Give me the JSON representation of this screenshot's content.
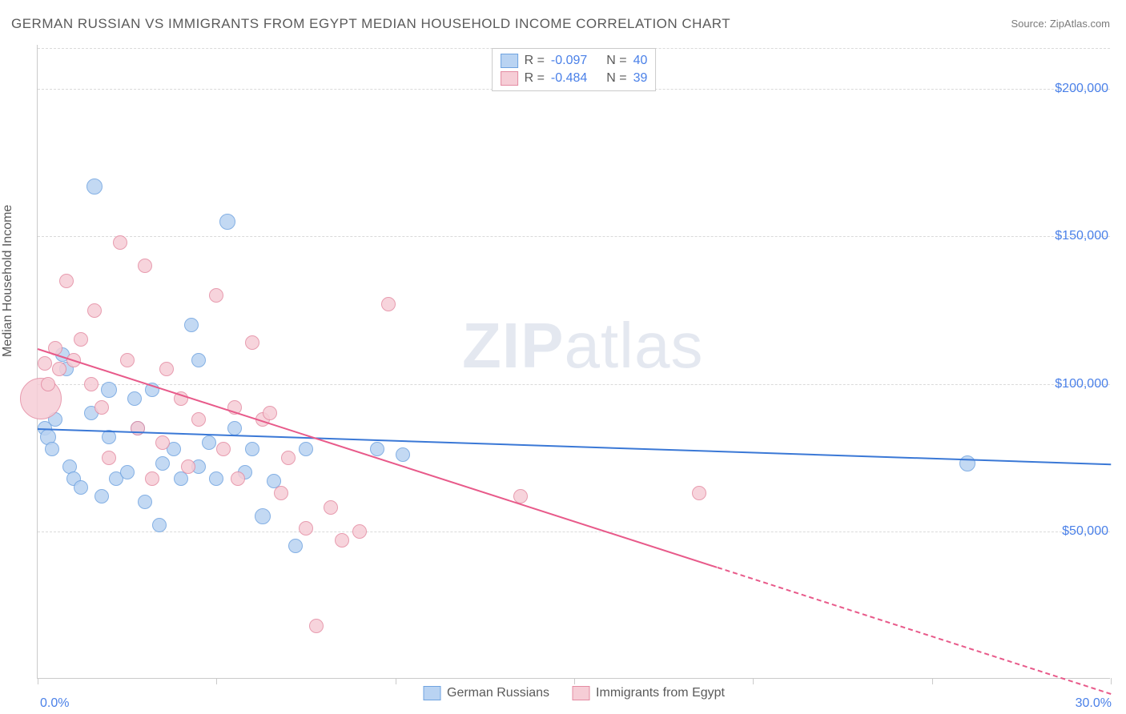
{
  "title": "GERMAN RUSSIAN VS IMMIGRANTS FROM EGYPT MEDIAN HOUSEHOLD INCOME CORRELATION CHART",
  "source": "Source: ZipAtlas.com",
  "ylabel": "Median Household Income",
  "watermark": "ZIPatlas",
  "chart": {
    "type": "scatter",
    "xlim": [
      0,
      30
    ],
    "ylim": [
      0,
      215000
    ],
    "xticks": [
      0,
      5,
      10,
      15,
      20,
      25,
      30
    ],
    "xtick_labels_shown": {
      "0": "0.0%",
      "30": "30.0%"
    },
    "yticks": [
      50000,
      100000,
      150000,
      200000
    ],
    "ytick_labels": [
      "$50,000",
      "$100,000",
      "$150,000",
      "$200,000"
    ],
    "background_color": "#ffffff",
    "grid_color": "#dadada",
    "axis_color": "#cacaca",
    "tick_label_color": "#4a80e8",
    "label_color": "#5a5a5a",
    "title_color": "#5a5a5a",
    "watermark_color": "#cfd6e4"
  },
  "series": [
    {
      "name": "German Russians",
      "color_fill": "#b9d3f2",
      "color_stroke": "#6fa3e0",
      "line_color": "#3a78d6",
      "r_value": "-0.097",
      "n_value": "40",
      "trend": {
        "x1": 0,
        "y1": 85000,
        "x2": 30,
        "y2": 73000,
        "dash_from_x": null
      },
      "points": [
        {
          "x": 0.2,
          "y": 85000,
          "r": 9
        },
        {
          "x": 0.3,
          "y": 82000,
          "r": 10
        },
        {
          "x": 0.4,
          "y": 78000,
          "r": 9
        },
        {
          "x": 0.5,
          "y": 88000,
          "r": 9
        },
        {
          "x": 0.7,
          "y": 110000,
          "r": 9
        },
        {
          "x": 0.8,
          "y": 105000,
          "r": 9
        },
        {
          "x": 0.9,
          "y": 72000,
          "r": 9
        },
        {
          "x": 1.0,
          "y": 68000,
          "r": 9
        },
        {
          "x": 1.2,
          "y": 65000,
          "r": 9
        },
        {
          "x": 1.5,
          "y": 90000,
          "r": 9
        },
        {
          "x": 1.6,
          "y": 167000,
          "r": 10
        },
        {
          "x": 1.8,
          "y": 62000,
          "r": 9
        },
        {
          "x": 2.0,
          "y": 98000,
          "r": 10
        },
        {
          "x": 2.0,
          "y": 82000,
          "r": 9
        },
        {
          "x": 2.2,
          "y": 68000,
          "r": 9
        },
        {
          "x": 2.5,
          "y": 70000,
          "r": 9
        },
        {
          "x": 2.7,
          "y": 95000,
          "r": 9
        },
        {
          "x": 2.8,
          "y": 85000,
          "r": 9
        },
        {
          "x": 3.0,
          "y": 60000,
          "r": 9
        },
        {
          "x": 3.2,
          "y": 98000,
          "r": 9
        },
        {
          "x": 3.4,
          "y": 52000,
          "r": 9
        },
        {
          "x": 3.5,
          "y": 73000,
          "r": 9
        },
        {
          "x": 3.8,
          "y": 78000,
          "r": 9
        },
        {
          "x": 4.0,
          "y": 68000,
          "r": 9
        },
        {
          "x": 4.3,
          "y": 120000,
          "r": 9
        },
        {
          "x": 4.5,
          "y": 108000,
          "r": 9
        },
        {
          "x": 4.5,
          "y": 72000,
          "r": 9
        },
        {
          "x": 4.8,
          "y": 80000,
          "r": 9
        },
        {
          "x": 5.0,
          "y": 68000,
          "r": 9
        },
        {
          "x": 5.3,
          "y": 155000,
          "r": 10
        },
        {
          "x": 5.5,
          "y": 85000,
          "r": 9
        },
        {
          "x": 5.8,
          "y": 70000,
          "r": 9
        },
        {
          "x": 6.0,
          "y": 78000,
          "r": 9
        },
        {
          "x": 6.3,
          "y": 55000,
          "r": 10
        },
        {
          "x": 6.6,
          "y": 67000,
          "r": 9
        },
        {
          "x": 7.2,
          "y": 45000,
          "r": 9
        },
        {
          "x": 7.5,
          "y": 78000,
          "r": 9
        },
        {
          "x": 9.5,
          "y": 78000,
          "r": 9
        },
        {
          "x": 10.2,
          "y": 76000,
          "r": 9
        },
        {
          "x": 26.0,
          "y": 73000,
          "r": 10
        }
      ]
    },
    {
      "name": "Immigrants from Egypt",
      "color_fill": "#f6cdd6",
      "color_stroke": "#e48ba2",
      "line_color": "#e85a8a",
      "r_value": "-0.484",
      "n_value": "39",
      "trend": {
        "x1": 0,
        "y1": 112000,
        "x2": 30,
        "y2": -5000,
        "dash_from_x": 19
      },
      "points": [
        {
          "x": 0.1,
          "y": 95000,
          "r": 26
        },
        {
          "x": 0.2,
          "y": 107000,
          "r": 9
        },
        {
          "x": 0.3,
          "y": 100000,
          "r": 9
        },
        {
          "x": 0.5,
          "y": 112000,
          "r": 9
        },
        {
          "x": 0.6,
          "y": 105000,
          "r": 9
        },
        {
          "x": 0.8,
          "y": 135000,
          "r": 9
        },
        {
          "x": 1.0,
          "y": 108000,
          "r": 9
        },
        {
          "x": 1.2,
          "y": 115000,
          "r": 9
        },
        {
          "x": 1.5,
          "y": 100000,
          "r": 9
        },
        {
          "x": 1.6,
          "y": 125000,
          "r": 9
        },
        {
          "x": 1.8,
          "y": 92000,
          "r": 9
        },
        {
          "x": 2.0,
          "y": 75000,
          "r": 9
        },
        {
          "x": 2.3,
          "y": 148000,
          "r": 9
        },
        {
          "x": 2.5,
          "y": 108000,
          "r": 9
        },
        {
          "x": 2.8,
          "y": 85000,
          "r": 9
        },
        {
          "x": 3.0,
          "y": 140000,
          "r": 9
        },
        {
          "x": 3.2,
          "y": 68000,
          "r": 9
        },
        {
          "x": 3.5,
          "y": 80000,
          "r": 9
        },
        {
          "x": 3.6,
          "y": 105000,
          "r": 9
        },
        {
          "x": 4.0,
          "y": 95000,
          "r": 9
        },
        {
          "x": 4.2,
          "y": 72000,
          "r": 9
        },
        {
          "x": 4.5,
          "y": 88000,
          "r": 9
        },
        {
          "x": 5.0,
          "y": 130000,
          "r": 9
        },
        {
          "x": 5.2,
          "y": 78000,
          "r": 9
        },
        {
          "x": 5.5,
          "y": 92000,
          "r": 9
        },
        {
          "x": 5.6,
          "y": 68000,
          "r": 9
        },
        {
          "x": 6.0,
          "y": 114000,
          "r": 9
        },
        {
          "x": 6.3,
          "y": 88000,
          "r": 9
        },
        {
          "x": 6.5,
          "y": 90000,
          "r": 9
        },
        {
          "x": 6.8,
          "y": 63000,
          "r": 9
        },
        {
          "x": 7.0,
          "y": 75000,
          "r": 9
        },
        {
          "x": 7.5,
          "y": 51000,
          "r": 9
        },
        {
          "x": 7.8,
          "y": 18000,
          "r": 9
        },
        {
          "x": 8.2,
          "y": 58000,
          "r": 9
        },
        {
          "x": 8.5,
          "y": 47000,
          "r": 9
        },
        {
          "x": 9.0,
          "y": 50000,
          "r": 9
        },
        {
          "x": 9.8,
          "y": 127000,
          "r": 9
        },
        {
          "x": 13.5,
          "y": 62000,
          "r": 9
        },
        {
          "x": 18.5,
          "y": 63000,
          "r": 9
        }
      ]
    }
  ],
  "legend_top": {
    "r_label": "R =",
    "n_label": "N ="
  },
  "legend_bottom": [
    "German Russians",
    "Immigrants from Egypt"
  ]
}
